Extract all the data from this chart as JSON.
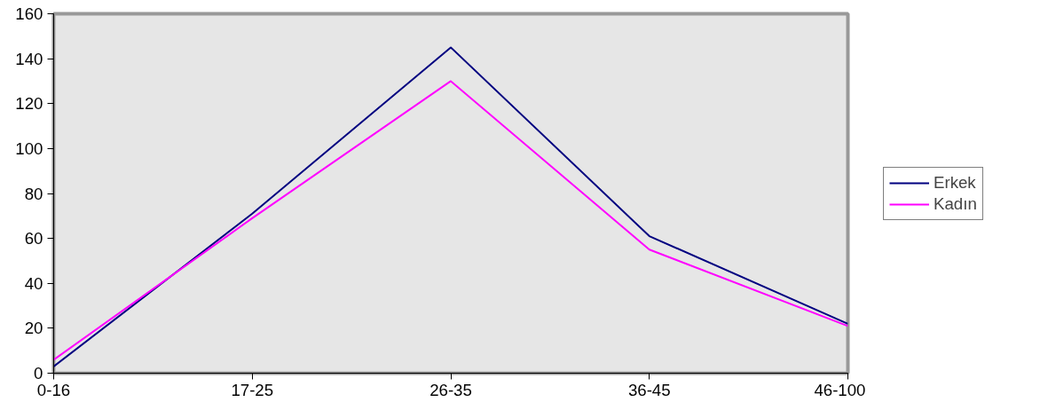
{
  "chart_data": {
    "type": "line",
    "categories": [
      "0-16",
      "17-25",
      "26-35",
      "36-45",
      "46-100"
    ],
    "series": [
      {
        "name": "Erkek",
        "color": "#000080",
        "values": [
          3,
          71,
          145,
          61,
          22
        ]
      },
      {
        "name": "Kadın",
        "color": "#ff00ff",
        "values": [
          6,
          69,
          130,
          55,
          21
        ]
      }
    ],
    "ylim": [
      0,
      160
    ],
    "yticks": [
      0,
      20,
      40,
      60,
      80,
      100,
      120,
      140,
      160
    ],
    "grid": false,
    "legend": "right",
    "marker": "none",
    "line_style": "solid"
  }
}
